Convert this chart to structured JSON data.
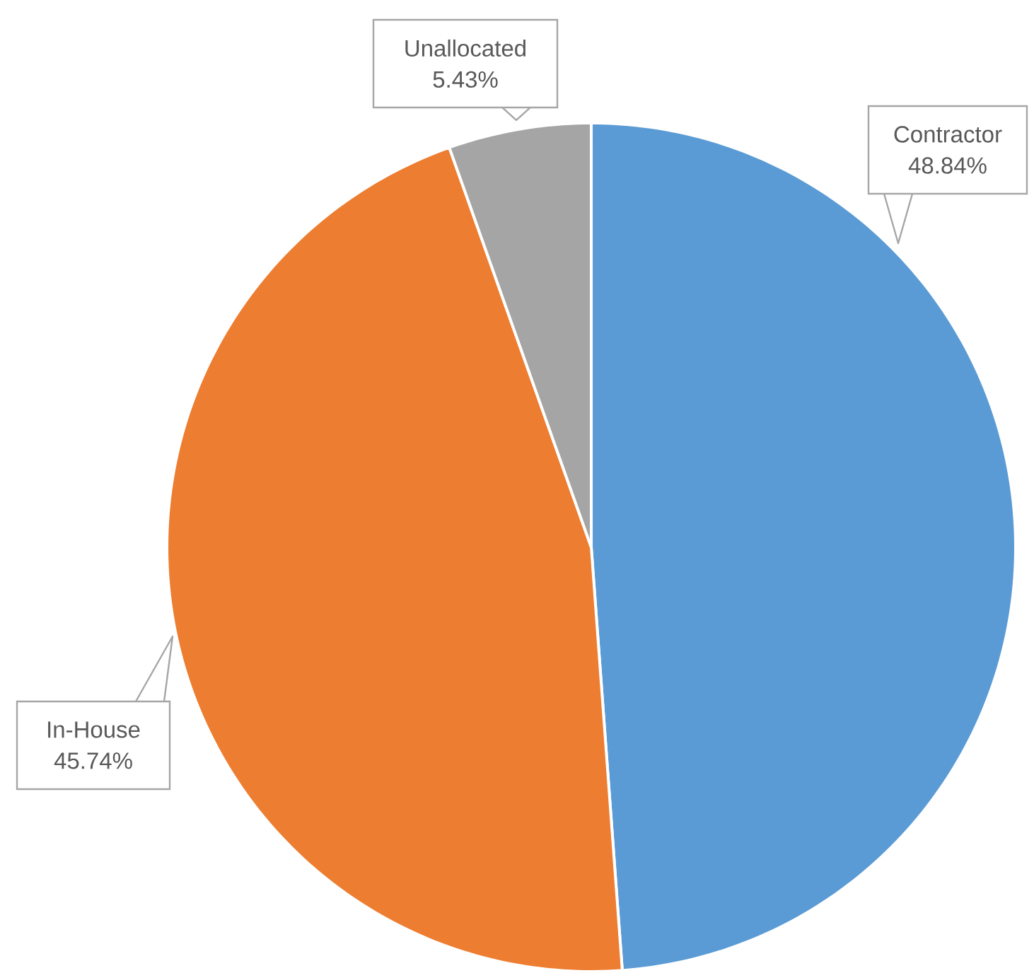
{
  "chart_data": {
    "type": "pie",
    "categories": [
      "Contractor",
      "In-House",
      "Unallocated"
    ],
    "values": [
      48.84,
      45.74,
      5.43
    ],
    "colors": [
      "#5b9bd5",
      "#ed7d31",
      "#a5a5a5"
    ],
    "value_labels": [
      "48.84%",
      "45.74%",
      "5.43%"
    ]
  }
}
